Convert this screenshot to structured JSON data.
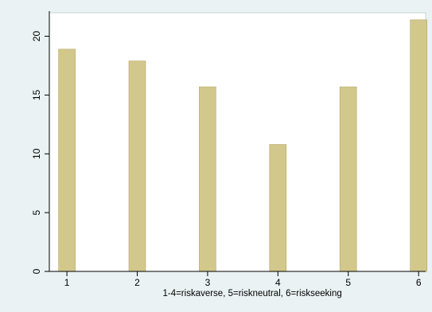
{
  "colors": {
    "outer_background": "#eaf2f3",
    "plot_background": "#ffffff",
    "bar_fill": "#d3c88b",
    "bar_stroke": "#b4a76a",
    "axis": "#000000"
  },
  "chart_data": {
    "type": "bar",
    "categories": [
      "1",
      "2",
      "3",
      "4",
      "5",
      "6"
    ],
    "x": [
      1,
      2,
      3,
      4,
      5,
      6
    ],
    "values": [
      18.9,
      17.9,
      15.7,
      10.8,
      15.7,
      21.4
    ],
    "title": "",
    "xlabel": "1-4=riskaverse, 5=riskneutral, 6=riskseeking",
    "ylabel": "",
    "ylim": [
      0,
      22
    ],
    "yticks": [
      0,
      5,
      10,
      15,
      20
    ],
    "xticks": [
      1,
      2,
      3,
      4,
      5,
      6
    ],
    "grid": false,
    "legend": "none"
  }
}
